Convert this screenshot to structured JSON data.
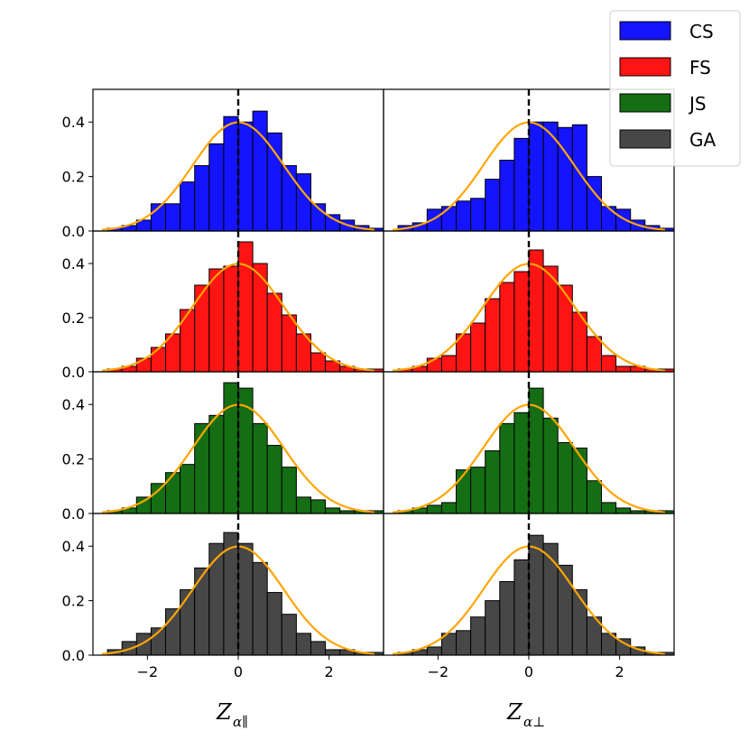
{
  "chart_data": {
    "type": "bar",
    "layout": "4 rows x 2 columns of histogram panels sharing axes",
    "xlim": [
      -3.2,
      3.2
    ],
    "ylim": [
      0.0,
      0.52
    ],
    "x_ticks": [
      -2,
      0,
      2
    ],
    "x_tick_labels": [
      "−2",
      "0",
      "2"
    ],
    "y_ticks": [
      0.0,
      0.2,
      0.4
    ],
    "y_tick_labels": [
      "0.0",
      "0.2",
      "0.4"
    ],
    "bin_width": 0.32,
    "bin_start": -2.88,
    "reference_line": {
      "x": 0,
      "style": "dashed",
      "color": "#000000"
    },
    "overlay_curve": {
      "type": "standard normal pdf",
      "mean": 0,
      "std": 1,
      "color": "#FFA500"
    },
    "columns": [
      {
        "xlabel_main": "Z",
        "xlabel_sub": "α∥"
      },
      {
        "xlabel_main": "Z",
        "xlabel_sub": "α⊥"
      }
    ],
    "legend": {
      "position": "upper-right",
      "entries": [
        {
          "label": "CS",
          "color": "#1414FF"
        },
        {
          "label": "FS",
          "color": "#FF1414"
        },
        {
          "label": "JS",
          "color": "#156E14"
        },
        {
          "label": "GA",
          "color": "#474747"
        }
      ]
    },
    "series": [
      {
        "name": "CS",
        "color": "#1414FF",
        "panels": [
          [
            0.01,
            0.02,
            0.04,
            0.1,
            0.1,
            0.18,
            0.24,
            0.32,
            0.42,
            0.4,
            0.44,
            0.36,
            0.24,
            0.21,
            0.1,
            0.06,
            0.04,
            0.02,
            0.01
          ],
          [
            0.02,
            0.03,
            0.08,
            0.09,
            0.11,
            0.12,
            0.19,
            0.26,
            0.34,
            0.4,
            0.4,
            0.38,
            0.39,
            0.2,
            0.09,
            0.08,
            0.04,
            0.02,
            0.01
          ]
        ]
      },
      {
        "name": "FS",
        "color": "#FF1414",
        "panels": [
          [
            0.01,
            0.02,
            0.05,
            0.09,
            0.14,
            0.23,
            0.32,
            0.38,
            0.39,
            0.48,
            0.4,
            0.29,
            0.21,
            0.14,
            0.07,
            0.04,
            0.02,
            0.01,
            0.01
          ],
          [
            0.01,
            0.02,
            0.05,
            0.06,
            0.14,
            0.18,
            0.27,
            0.33,
            0.37,
            0.45,
            0.39,
            0.32,
            0.22,
            0.13,
            0.06,
            0.02,
            0.02,
            0.01,
            0.01
          ]
        ]
      },
      {
        "name": "JS",
        "color": "#156E14",
        "panels": [
          [
            0.01,
            0.02,
            0.06,
            0.11,
            0.15,
            0.18,
            0.33,
            0.36,
            0.48,
            0.46,
            0.33,
            0.25,
            0.17,
            0.06,
            0.05,
            0.02,
            0.01,
            0.01,
            0.01
          ],
          [
            0.01,
            0.02,
            0.03,
            0.04,
            0.16,
            0.17,
            0.23,
            0.33,
            0.37,
            0.46,
            0.35,
            0.26,
            0.24,
            0.12,
            0.04,
            0.02,
            0.01,
            0.01,
            0.01
          ]
        ]
      },
      {
        "name": "GA",
        "color": "#474747",
        "panels": [
          [
            0.02,
            0.05,
            0.08,
            0.1,
            0.17,
            0.24,
            0.32,
            0.41,
            0.45,
            0.41,
            0.34,
            0.23,
            0.15,
            0.08,
            0.05,
            0.02,
            0.02,
            0.01,
            0.01
          ],
          [
            0.01,
            0.02,
            0.03,
            0.08,
            0.09,
            0.14,
            0.2,
            0.27,
            0.35,
            0.44,
            0.41,
            0.33,
            0.24,
            0.14,
            0.08,
            0.06,
            0.03,
            0.01,
            0.01
          ]
        ]
      }
    ]
  }
}
